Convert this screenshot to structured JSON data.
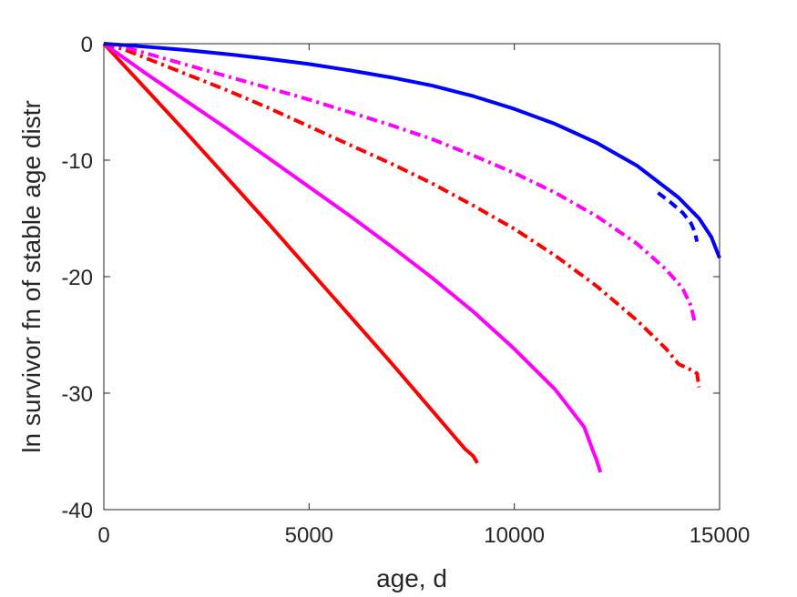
{
  "chart_data": {
    "type": "line",
    "title": "",
    "xlabel": "age, d",
    "ylabel": "ln survivor fn of stable age distr",
    "xlim": [
      0,
      15000
    ],
    "ylim": [
      -40,
      0
    ],
    "xticks": [
      0,
      5000,
      10000,
      15000
    ],
    "yticks": [
      0,
      -10,
      -20,
      -30,
      -40
    ],
    "grid": false,
    "box": true,
    "series": [
      {
        "color": "#ff0000",
        "style": "solid",
        "points": [
          [
            0,
            0
          ],
          [
            1000,
            -3.8
          ],
          [
            2000,
            -7.6
          ],
          [
            3000,
            -11.5
          ],
          [
            4000,
            -15.4
          ],
          [
            5000,
            -19.4
          ],
          [
            6000,
            -23.4
          ],
          [
            7000,
            -27.4
          ],
          [
            8000,
            -31.5
          ],
          [
            8800,
            -34.8
          ],
          [
            9000,
            -35.4
          ],
          [
            9100,
            -36.0
          ]
        ]
      },
      {
        "color": "#ff00ff",
        "style": "solid",
        "points": [
          [
            0,
            0
          ],
          [
            1000,
            -2.5
          ],
          [
            2000,
            -4.9
          ],
          [
            3000,
            -7.3
          ],
          [
            4000,
            -9.8
          ],
          [
            5000,
            -12.3
          ],
          [
            6000,
            -14.8
          ],
          [
            7000,
            -17.4
          ],
          [
            8000,
            -20.1
          ],
          [
            9000,
            -23.0
          ],
          [
            10000,
            -26.2
          ],
          [
            11000,
            -29.7
          ],
          [
            11700,
            -32.9
          ],
          [
            11900,
            -34.8
          ],
          [
            12000,
            -35.7
          ],
          [
            12100,
            -36.8
          ]
        ]
      },
      {
        "color": "#ff0000",
        "style": "dashdot",
        "points": [
          [
            0,
            0
          ],
          [
            500,
            -0.5
          ],
          [
            1000,
            -1.2
          ],
          [
            2000,
            -2.6
          ],
          [
            3000,
            -4.0
          ],
          [
            4000,
            -5.5
          ],
          [
            5000,
            -7.1
          ],
          [
            6000,
            -8.7
          ],
          [
            7000,
            -10.3
          ],
          [
            8000,
            -12.0
          ],
          [
            9000,
            -13.9
          ],
          [
            10000,
            -15.9
          ],
          [
            11000,
            -18.2
          ],
          [
            12000,
            -20.8
          ],
          [
            13000,
            -23.8
          ],
          [
            13700,
            -26.2
          ],
          [
            14000,
            -27.5
          ],
          [
            14300,
            -28.0
          ],
          [
            14450,
            -28.3
          ],
          [
            14500,
            -29.5
          ]
        ]
      },
      {
        "color": "#ff00ff",
        "style": "dashdot",
        "points": [
          [
            0,
            0
          ],
          [
            500,
            -0.3
          ],
          [
            1000,
            -0.8
          ],
          [
            2000,
            -1.8
          ],
          [
            3000,
            -2.8
          ],
          [
            4000,
            -3.8
          ],
          [
            5000,
            -4.8
          ],
          [
            6000,
            -5.9
          ],
          [
            7000,
            -7.0
          ],
          [
            8000,
            -8.2
          ],
          [
            9000,
            -9.6
          ],
          [
            10000,
            -11.1
          ],
          [
            11000,
            -12.8
          ],
          [
            12000,
            -14.8
          ],
          [
            13000,
            -17.2
          ],
          [
            13700,
            -19.4
          ],
          [
            14100,
            -21.0
          ],
          [
            14300,
            -22.5
          ],
          [
            14400,
            -24.0
          ]
        ]
      },
      {
        "color": "#0000ff",
        "style": "dashed",
        "points": [
          [
            13500,
            -12.8
          ],
          [
            13800,
            -13.6
          ],
          [
            14100,
            -14.5
          ],
          [
            14300,
            -15.4
          ],
          [
            14400,
            -16.2
          ],
          [
            14450,
            -17.0
          ]
        ]
      },
      {
        "color": "#0000ff",
        "style": "solid",
        "points": [
          [
            0,
            0
          ],
          [
            1000,
            -0.25
          ],
          [
            2000,
            -0.55
          ],
          [
            3000,
            -0.9
          ],
          [
            4000,
            -1.3
          ],
          [
            5000,
            -1.75
          ],
          [
            6000,
            -2.3
          ],
          [
            7000,
            -2.9
          ],
          [
            8000,
            -3.6
          ],
          [
            9000,
            -4.5
          ],
          [
            10000,
            -5.6
          ],
          [
            11000,
            -6.9
          ],
          [
            12000,
            -8.5
          ],
          [
            13000,
            -10.5
          ],
          [
            14000,
            -13.2
          ],
          [
            14500,
            -15.0
          ],
          [
            14800,
            -16.6
          ],
          [
            15000,
            -18.4
          ]
        ]
      }
    ]
  }
}
